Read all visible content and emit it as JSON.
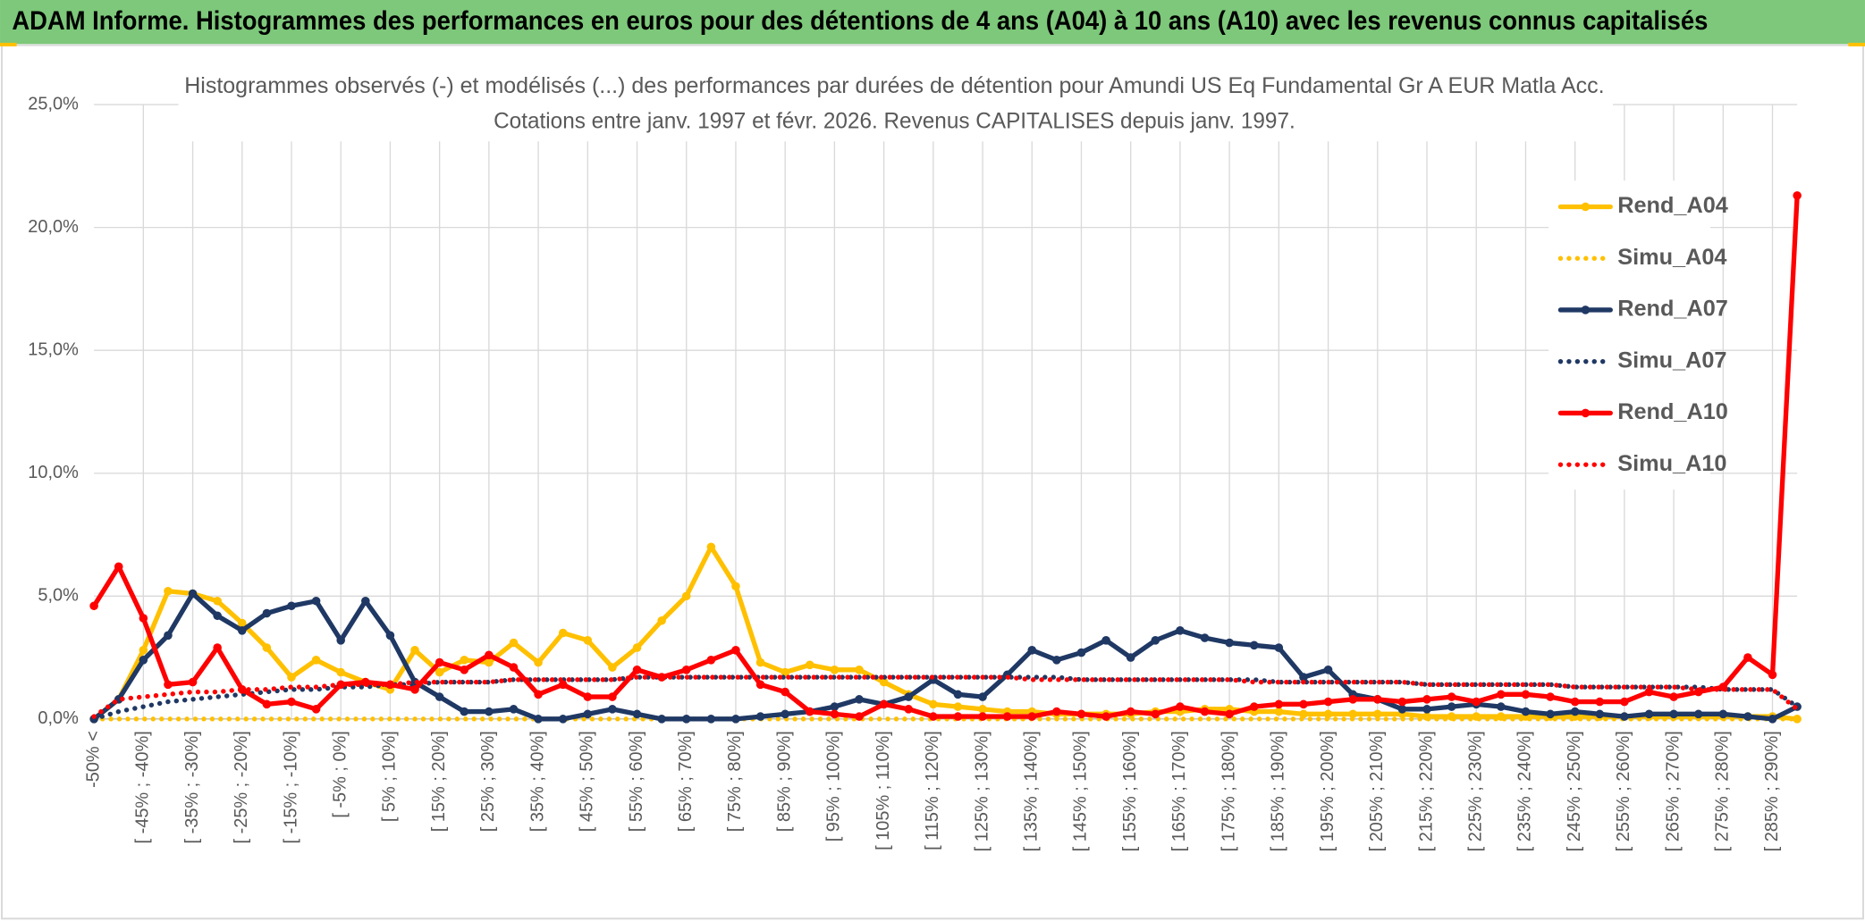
{
  "header": "ADAM Informe. Histogrammes des performances en euros pour des détentions de 4 ans (A04) à 10 ans (A10) avec les revenus connus capitalisés",
  "chart_data": {
    "type": "line",
    "title": "Histogrammes observés (-) et modélisés (...) des performances par durées de détention pour Amundi US Eq Fundamental Gr A EUR Matla Acc.",
    "subtitle": "Cotations entre janv. 1997 et févr. 2026. Revenus CAPITALISES depuis janv. 1997.",
    "categories": [
      "-50% <",
      null,
      "[ -45% ; -40%]",
      null,
      "[ -35% ; -30%]",
      null,
      "[ -25% ; -20%]",
      null,
      "[ -15% ; -10%]",
      null,
      "[ -5% ; 0%]",
      null,
      "[ 5% ; 10%]",
      null,
      "[ 15% ; 20%]",
      null,
      "[ 25% ; 30%]",
      null,
      "[ 35% ; 40%]",
      null,
      "[ 45% ; 50%]",
      null,
      "[ 55% ; 60%]",
      null,
      "[ 65% ; 70%]",
      null,
      "[ 75% ; 80%]",
      null,
      "[ 85% ; 90%]",
      null,
      "[ 95% ; 100%]",
      null,
      "[ 105% ; 110%]",
      null,
      "[ 115% ; 120%]",
      null,
      "[ 125% ; 130%]",
      null,
      "[ 135% ; 140%]",
      null,
      "[ 145% ; 150%]",
      null,
      "[ 155% ; 160%]",
      null,
      "[ 165% ; 170%]",
      null,
      "[ 175% ; 180%]",
      null,
      "[ 185% ; 190%]",
      null,
      "[ 195% ; 200%]",
      null,
      "[ 205% ; 210%]",
      null,
      "[ 215% ; 220%]",
      null,
      "[ 225% ; 230%]",
      null,
      "[ 235% ; 240%]",
      null,
      "[ 245% ; 250%]",
      null,
      "[ 255% ; 260%]",
      null,
      "[ 265% ; 270%]",
      null,
      "[ 275% ; 280%]",
      null,
      "[ 285% ; 290%]",
      null
    ],
    "series": [
      {
        "name": "Rend_A04",
        "color": "#ffc000",
        "style": "solid",
        "markers": true,
        "values": [
          0,
          0.8,
          2.8,
          5.2,
          5.1,
          4.8,
          3.9,
          2.9,
          1.7,
          2.4,
          1.9,
          1.5,
          1.2,
          2.8,
          1.9,
          2.4,
          2.3,
          3.1,
          2.3,
          3.5,
          3.2,
          2.1,
          2.9,
          4.0,
          5.0,
          7.0,
          5.4,
          2.3,
          1.9,
          2.2,
          2.0,
          2.0,
          1.5,
          1.0,
          0.6,
          0.5,
          0.4,
          0.3,
          0.3,
          0.2,
          0.2,
          0.2,
          0.2,
          0.3,
          0.3,
          0.4,
          0.4,
          0.3,
          0.3,
          0.2,
          0.2,
          0.2,
          0.2,
          0.2,
          0.1,
          0.1,
          0.1,
          0.1,
          0.1,
          0.1,
          0.1,
          0.1,
          0.1,
          0.1,
          0.1,
          0.1,
          0.1,
          0.1,
          0.1,
          0.0
        ]
      },
      {
        "name": "Simu_A04",
        "color": "#ffc000",
        "style": "dotted",
        "markers": false,
        "values": [
          0,
          0,
          0,
          0,
          0,
          0,
          0,
          0,
          0,
          0,
          0,
          0,
          0,
          0,
          0,
          0,
          0,
          0,
          0,
          0,
          0,
          0,
          0,
          0,
          0,
          0,
          0,
          0,
          0,
          0,
          0,
          0,
          0,
          0,
          0,
          0,
          0,
          0,
          0,
          0,
          0,
          0,
          0,
          0,
          0,
          0,
          0,
          0,
          0,
          0,
          0,
          0,
          0,
          0,
          0,
          0,
          0,
          0,
          0,
          0,
          0,
          0,
          0,
          0,
          0,
          0,
          0,
          0,
          0,
          0
        ]
      },
      {
        "name": "Rend_A07",
        "color": "#1f3864",
        "style": "solid",
        "markers": true,
        "values": [
          0,
          0.8,
          2.4,
          3.4,
          5.1,
          4.2,
          3.6,
          4.3,
          4.6,
          4.8,
          3.2,
          4.8,
          3.4,
          1.5,
          0.9,
          0.3,
          0.3,
          0.4,
          0.0,
          0.0,
          0.2,
          0.4,
          0.2,
          0.0,
          0.0,
          0.0,
          0.0,
          0.1,
          0.2,
          0.3,
          0.5,
          0.8,
          0.6,
          0.9,
          1.6,
          1.0,
          0.9,
          1.8,
          2.8,
          2.4,
          2.7,
          3.2,
          2.5,
          3.2,
          3.6,
          3.3,
          3.1,
          3.0,
          2.9,
          1.7,
          2.0,
          1.0,
          0.8,
          0.4,
          0.4,
          0.5,
          0.6,
          0.5,
          0.3,
          0.2,
          0.3,
          0.2,
          0.1,
          0.2,
          0.2,
          0.2,
          0.2,
          0.1,
          0.0,
          0.5
        ]
      },
      {
        "name": "Simu_A07",
        "color": "#1f3864",
        "style": "dotted",
        "markers": false,
        "values": [
          0,
          0.3,
          0.5,
          0.7,
          0.8,
          0.9,
          1.0,
          1.1,
          1.2,
          1.2,
          1.3,
          1.3,
          1.4,
          1.4,
          1.5,
          1.5,
          1.5,
          1.6,
          1.6,
          1.6,
          1.6,
          1.6,
          1.7,
          1.7,
          1.7,
          1.7,
          1.7,
          1.7,
          1.7,
          1.7,
          1.7,
          1.7,
          1.7,
          1.7,
          1.7,
          1.7,
          1.7,
          1.7,
          1.7,
          1.7,
          1.6,
          1.6,
          1.6,
          1.6,
          1.6,
          1.6,
          1.6,
          1.6,
          1.5,
          1.5,
          1.5,
          1.5,
          1.5,
          1.5,
          1.4,
          1.4,
          1.4,
          1.4,
          1.4,
          1.4,
          1.3,
          1.3,
          1.3,
          1.3,
          1.3,
          1.3,
          1.2,
          1.2,
          1.2,
          0.5
        ]
      },
      {
        "name": "Rend_A10",
        "color": "#ff0000",
        "style": "solid",
        "markers": true,
        "values": [
          4.6,
          6.2,
          4.1,
          1.4,
          1.5,
          2.9,
          1.2,
          0.6,
          0.7,
          0.4,
          1.4,
          1.5,
          1.4,
          1.2,
          2.3,
          2.0,
          2.6,
          2.1,
          1.0,
          1.4,
          0.9,
          0.9,
          2.0,
          1.7,
          2.0,
          2.4,
          2.8,
          1.4,
          1.1,
          0.3,
          0.2,
          0.1,
          0.6,
          0.4,
          0.1,
          0.1,
          0.1,
          0.1,
          0.1,
          0.3,
          0.2,
          0.1,
          0.3,
          0.2,
          0.5,
          0.3,
          0.2,
          0.5,
          0.6,
          0.6,
          0.7,
          0.8,
          0.8,
          0.7,
          0.8,
          0.9,
          0.7,
          1.0,
          1.0,
          0.9,
          0.7,
          0.7,
          0.7,
          1.1,
          0.9,
          1.1,
          1.3,
          2.5,
          1.8,
          21.3
        ]
      },
      {
        "name": "Simu_A10",
        "color": "#ff0000",
        "style": "dotted",
        "markers": false,
        "values": [
          0.1,
          0.8,
          0.9,
          1.0,
          1.1,
          1.1,
          1.2,
          1.2,
          1.3,
          1.3,
          1.4,
          1.4,
          1.4,
          1.5,
          1.5,
          1.5,
          1.5,
          1.6,
          1.6,
          1.6,
          1.6,
          1.6,
          1.7,
          1.7,
          1.7,
          1.7,
          1.7,
          1.7,
          1.7,
          1.7,
          1.7,
          1.7,
          1.7,
          1.7,
          1.7,
          1.7,
          1.7,
          1.7,
          1.6,
          1.6,
          1.6,
          1.6,
          1.6,
          1.6,
          1.6,
          1.6,
          1.6,
          1.5,
          1.5,
          1.5,
          1.5,
          1.5,
          1.5,
          1.5,
          1.4,
          1.4,
          1.4,
          1.4,
          1.4,
          1.4,
          1.3,
          1.3,
          1.3,
          1.3,
          1.3,
          1.2,
          1.2,
          1.2,
          1.2,
          0.4
        ]
      }
    ],
    "ylim": [
      0,
      25
    ],
    "yticks": [
      {
        "value": 0,
        "label": "0,0%"
      },
      {
        "value": 5,
        "label": "5,0%"
      },
      {
        "value": 10,
        "label": "10,0%"
      },
      {
        "value": 15,
        "label": "15,0%"
      },
      {
        "value": 20,
        "label": "20,0%"
      },
      {
        "value": 25,
        "label": "25,0%"
      }
    ],
    "grid": true,
    "legend": "right"
  }
}
